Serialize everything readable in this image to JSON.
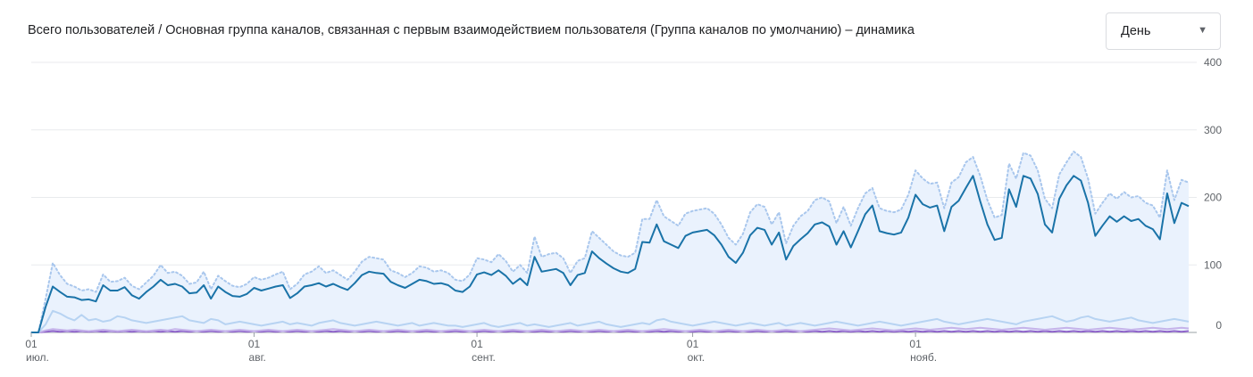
{
  "header": {
    "title": "Всего пользователей / Основная группа каналов, связанная с первым взаимодействием пользователя (Группа каналов по умолчанию) – динамика",
    "granularity": "День",
    "caret": "▼"
  },
  "chart_data": {
    "type": "line",
    "title": "Всего пользователей / Основная группа каналов, связанная с первым взаимодействием пользователя (Группа каналов по умолчанию) – динамика",
    "xlabel": "",
    "ylabel": "",
    "ylim": [
      0,
      400
    ],
    "y_ticks": [
      "0",
      "100",
      "200",
      "300",
      "400"
    ],
    "x_ticks": [
      {
        "day": 0,
        "top": "01",
        "bottom": "июл."
      },
      {
        "day": 31,
        "top": "01",
        "bottom": "авг."
      },
      {
        "day": 62,
        "top": "01",
        "bottom": "сент."
      },
      {
        "day": 92,
        "top": "01",
        "bottom": "окт."
      },
      {
        "day": 123,
        "top": "01",
        "bottom": "нояб."
      }
    ],
    "grid": true,
    "x_start": "2023-07-01",
    "x_end": "2023-11-30",
    "series": [
      {
        "color": "#1a73a8",
        "role": "main",
        "values": [
          0,
          0,
          38,
          68,
          60,
          53,
          52,
          48,
          49,
          46,
          70,
          62,
          62,
          67,
          55,
          50,
          60,
          68,
          78,
          70,
          72,
          68,
          58,
          59,
          70,
          50,
          68,
          60,
          54,
          53,
          57,
          66,
          62,
          65,
          68,
          70,
          51,
          58,
          68,
          70,
          73,
          68,
          72,
          67,
          63,
          73,
          85,
          90,
          88,
          87,
          75,
          70,
          66,
          72,
          78,
          76,
          72,
          73,
          70,
          62,
          60,
          68,
          86,
          89,
          85,
          92,
          84,
          72,
          80,
          70,
          112,
          90,
          92,
          94,
          88,
          70,
          85,
          88,
          120,
          110,
          102,
          95,
          90,
          88,
          94,
          134,
          133,
          160,
          135,
          130,
          125,
          143,
          148,
          150,
          152,
          144,
          130,
          112,
          103,
          118,
          144,
          155,
          152,
          130,
          148,
          108,
          128,
          138,
          147,
          160,
          163,
          157,
          130,
          150,
          126,
          150,
          175,
          188,
          150,
          147,
          145,
          148,
          170,
          204,
          190,
          185,
          188,
          150,
          186,
          195,
          214,
          232,
          194,
          160,
          137,
          140,
          212,
          186,
          232,
          228,
          205,
          160,
          148,
          198,
          218,
          232,
          225,
          192,
          143,
          158,
          172,
          164,
          172,
          165,
          168,
          158,
          153,
          138,
          206,
          162,
          192,
          187
        ]
      },
      {
        "color": "#a9c7ed",
        "role": "upper",
        "dotted": true,
        "values": [
          0,
          0,
          50,
          103,
          85,
          72,
          68,
          62,
          64,
          60,
          86,
          75,
          76,
          81,
          69,
          64,
          74,
          84,
          100,
          88,
          90,
          84,
          72,
          74,
          90,
          64,
          84,
          76,
          69,
          67,
          72,
          82,
          78,
          81,
          86,
          90,
          64,
          72,
          86,
          90,
          98,
          88,
          92,
          85,
          78,
          90,
          105,
          112,
          110,
          108,
          92,
          88,
          82,
          88,
          98,
          96,
          90,
          92,
          88,
          78,
          76,
          86,
          110,
          108,
          104,
          116,
          106,
          90,
          100,
          88,
          142,
          112,
          116,
          118,
          110,
          88,
          106,
          110,
          150,
          140,
          130,
          120,
          114,
          112,
          118,
          168,
          168,
          196,
          172,
          165,
          158,
          176,
          180,
          182,
          184,
          176,
          160,
          140,
          130,
          146,
          178,
          190,
          186,
          160,
          178,
          132,
          158,
          172,
          180,
          196,
          200,
          194,
          162,
          186,
          158,
          184,
          206,
          214,
          184,
          180,
          178,
          182,
          204,
          240,
          228,
          220,
          222,
          184,
          222,
          230,
          252,
          260,
          232,
          196,
          170,
          174,
          250,
          228,
          266,
          262,
          240,
          198,
          184,
          234,
          252,
          268,
          260,
          228,
          176,
          192,
          206,
          198,
          208,
          200,
          202,
          192,
          188,
          170,
          240,
          196,
          226,
          222
        ]
      },
      {
        "color": "#b7d3f2",
        "role": "secondary",
        "values": [
          0,
          0,
          12,
          32,
          28,
          22,
          18,
          26,
          18,
          20,
          16,
          18,
          24,
          22,
          18,
          16,
          14,
          16,
          18,
          20,
          22,
          24,
          18,
          16,
          14,
          20,
          18,
          12,
          14,
          16,
          14,
          12,
          10,
          12,
          14,
          16,
          12,
          14,
          12,
          10,
          14,
          16,
          18,
          14,
          12,
          10,
          12,
          14,
          16,
          14,
          12,
          10,
          12,
          14,
          10,
          12,
          14,
          12,
          10,
          10,
          8,
          10,
          12,
          14,
          10,
          8,
          10,
          12,
          14,
          10,
          12,
          10,
          8,
          10,
          12,
          14,
          10,
          12,
          14,
          16,
          12,
          10,
          8,
          10,
          12,
          14,
          12,
          18,
          20,
          16,
          14,
          12,
          10,
          12,
          14,
          16,
          14,
          12,
          10,
          12,
          14,
          12,
          10,
          12,
          14,
          10,
          12,
          14,
          12,
          10,
          12,
          14,
          16,
          14,
          12,
          10,
          12,
          14,
          16,
          14,
          12,
          10,
          12,
          14,
          16,
          18,
          20,
          16,
          14,
          12,
          14,
          16,
          18,
          20,
          18,
          16,
          14,
          12,
          16,
          18,
          20,
          22,
          24,
          20,
          16,
          18,
          22,
          24,
          20,
          18,
          16,
          18,
          20,
          22,
          18,
          16,
          14,
          16,
          18,
          20,
          18,
          16
        ]
      },
      {
        "color": "#c5b3ea",
        "role": "tertiary",
        "values": [
          0,
          0,
          3,
          5,
          4,
          3,
          4,
          3,
          2,
          3,
          4,
          3,
          2,
          3,
          4,
          3,
          2,
          3,
          4,
          3,
          5,
          4,
          3,
          2,
          3,
          4,
          3,
          2,
          3,
          4,
          3,
          2,
          3,
          4,
          3,
          2,
          3,
          4,
          3,
          2,
          3,
          4,
          5,
          4,
          3,
          2,
          3,
          4,
          3,
          2,
          3,
          4,
          3,
          2,
          3,
          4,
          3,
          2,
          3,
          4,
          3,
          2,
          3,
          4,
          3,
          2,
          3,
          4,
          3,
          2,
          3,
          4,
          3,
          2,
          3,
          4,
          3,
          2,
          3,
          4,
          3,
          2,
          3,
          4,
          3,
          2,
          3,
          4,
          5,
          4,
          3,
          2,
          3,
          4,
          3,
          2,
          3,
          4,
          3,
          2,
          3,
          4,
          3,
          2,
          3,
          4,
          3,
          2,
          3,
          4,
          5,
          6,
          5,
          4,
          3,
          4,
          5,
          6,
          5,
          4,
          3,
          4,
          5,
          6,
          5,
          4,
          5,
          6,
          7,
          6,
          5,
          6,
          7,
          6,
          5,
          4,
          5,
          6,
          7,
          6,
          5,
          4,
          5,
          6,
          7,
          6,
          5,
          4,
          5,
          6,
          7,
          6,
          5,
          4,
          5,
          6,
          7,
          6,
          5,
          6,
          7,
          6
        ]
      },
      {
        "color": "#8e63c9",
        "role": "bottom",
        "values": [
          0,
          0,
          1,
          2,
          1,
          2,
          1,
          2,
          1,
          2,
          1,
          2,
          1,
          2,
          1,
          2,
          1,
          2,
          1,
          2,
          1,
          2,
          1,
          2,
          1,
          2,
          1,
          2,
          1,
          2,
          1,
          2,
          1,
          2,
          1,
          2,
          1,
          2,
          1,
          2,
          1,
          2,
          1,
          2,
          1,
          2,
          1,
          2,
          1,
          2,
          1,
          2,
          1,
          2,
          1,
          2,
          1,
          2,
          1,
          2,
          1,
          2,
          1,
          2,
          1,
          2,
          1,
          2,
          1,
          2,
          1,
          2,
          1,
          2,
          1,
          2,
          1,
          2,
          1,
          2,
          1,
          2,
          1,
          2,
          1,
          2,
          1,
          2,
          1,
          2,
          1,
          2,
          1,
          2,
          1,
          2,
          1,
          2,
          1,
          2,
          1,
          2,
          1,
          2,
          1,
          2,
          1,
          2,
          1,
          2,
          1,
          2,
          1,
          2,
          1,
          2,
          1,
          2,
          1,
          2,
          1,
          2,
          1,
          2,
          1,
          2,
          1,
          2,
          1,
          2,
          1,
          2,
          1,
          2,
          1,
          2,
          1,
          2,
          1,
          2,
          1,
          2,
          1,
          2,
          1,
          2,
          1,
          2,
          1,
          2,
          1,
          2,
          1,
          2,
          1,
          2,
          1,
          2,
          1,
          2,
          1,
          2
        ]
      }
    ]
  }
}
